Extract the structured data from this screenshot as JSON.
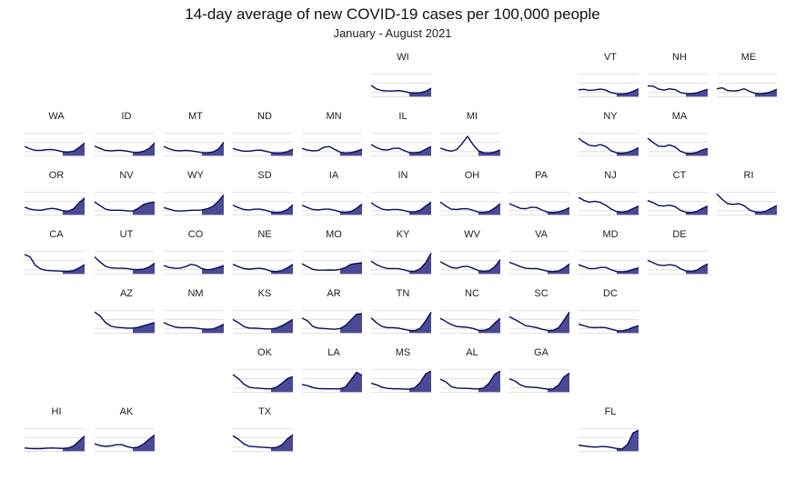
{
  "chart": {
    "title": "14-day average of new COVID-19 cases per 100,000 people",
    "subtitle": "January - August 2021"
  },
  "chart_data": {
    "type": "area",
    "layout": "small-multiples (US state grid)",
    "x_range": [
      "2021-01",
      "2021-08"
    ],
    "colors": {
      "fill": "#4b4a96",
      "line": "#0a0f5c",
      "grid": "#d9d9d9"
    },
    "states": [
      {
        "name": "WI",
        "values": [
          0.5,
          0.32,
          0.24,
          0.22,
          0.22,
          0.24,
          0.2,
          0.13,
          0.12,
          0.13,
          0.2,
          0.36
        ]
      },
      {
        "name": "VT",
        "values": [
          0.28,
          0.3,
          0.25,
          0.27,
          0.32,
          0.26,
          0.13,
          0.08,
          0.07,
          0.1,
          0.2,
          0.33
        ]
      },
      {
        "name": "NH",
        "values": [
          0.48,
          0.46,
          0.32,
          0.26,
          0.33,
          0.29,
          0.14,
          0.09,
          0.08,
          0.12,
          0.22,
          0.3
        ]
      },
      {
        "name": "ME",
        "values": [
          0.33,
          0.38,
          0.24,
          0.22,
          0.24,
          0.33,
          0.2,
          0.1,
          0.08,
          0.11,
          0.18,
          0.3
        ]
      },
      {
        "name": "WA",
        "values": [
          0.4,
          0.28,
          0.2,
          0.2,
          0.24,
          0.25,
          0.2,
          0.13,
          0.12,
          0.16,
          0.35,
          0.58
        ]
      },
      {
        "name": "ID",
        "values": [
          0.42,
          0.3,
          0.2,
          0.18,
          0.2,
          0.2,
          0.16,
          0.11,
          0.1,
          0.16,
          0.3,
          0.58
        ]
      },
      {
        "name": "MT",
        "values": [
          0.4,
          0.28,
          0.2,
          0.18,
          0.2,
          0.18,
          0.14,
          0.09,
          0.08,
          0.12,
          0.26,
          0.62
        ]
      },
      {
        "name": "ND",
        "values": [
          0.3,
          0.22,
          0.16,
          0.16,
          0.2,
          0.22,
          0.16,
          0.09,
          0.07,
          0.08,
          0.14,
          0.26
        ]
      },
      {
        "name": "MN",
        "values": [
          0.3,
          0.22,
          0.18,
          0.2,
          0.36,
          0.4,
          0.25,
          0.11,
          0.07,
          0.09,
          0.16,
          0.26
        ]
      },
      {
        "name": "IL",
        "values": [
          0.5,
          0.34,
          0.24,
          0.22,
          0.3,
          0.32,
          0.2,
          0.09,
          0.08,
          0.12,
          0.26,
          0.4
        ]
      },
      {
        "name": "MI",
        "values": [
          0.32,
          0.22,
          0.16,
          0.24,
          0.55,
          0.92,
          0.5,
          0.18,
          0.08,
          0.07,
          0.12,
          0.22
        ]
      },
      {
        "name": "NY",
        "values": [
          0.82,
          0.62,
          0.46,
          0.42,
          0.5,
          0.4,
          0.18,
          0.08,
          0.06,
          0.1,
          0.2,
          0.34
        ]
      },
      {
        "name": "MA",
        "values": [
          0.82,
          0.6,
          0.42,
          0.4,
          0.48,
          0.38,
          0.16,
          0.06,
          0.05,
          0.1,
          0.22,
          0.3
        ]
      },
      {
        "name": "OR",
        "values": [
          0.32,
          0.22,
          0.18,
          0.16,
          0.22,
          0.26,
          0.22,
          0.14,
          0.12,
          0.24,
          0.55,
          0.78
        ]
      },
      {
        "name": "NV",
        "values": [
          0.58,
          0.4,
          0.22,
          0.16,
          0.16,
          0.16,
          0.13,
          0.12,
          0.26,
          0.46,
          0.54,
          0.58
        ]
      },
      {
        "name": "WY",
        "values": [
          0.3,
          0.22,
          0.14,
          0.12,
          0.14,
          0.16,
          0.16,
          0.18,
          0.24,
          0.36,
          0.62,
          0.95
        ]
      },
      {
        "name": "SD",
        "values": [
          0.42,
          0.3,
          0.2,
          0.18,
          0.22,
          0.22,
          0.16,
          0.08,
          0.05,
          0.08,
          0.2,
          0.44
        ]
      },
      {
        "name": "IA",
        "values": [
          0.42,
          0.3,
          0.2,
          0.18,
          0.22,
          0.22,
          0.16,
          0.08,
          0.06,
          0.1,
          0.26,
          0.48
        ]
      },
      {
        "name": "IN",
        "values": [
          0.55,
          0.36,
          0.22,
          0.18,
          0.2,
          0.2,
          0.15,
          0.08,
          0.08,
          0.16,
          0.38,
          0.58
        ]
      },
      {
        "name": "OH",
        "values": [
          0.58,
          0.38,
          0.22,
          0.2,
          0.24,
          0.24,
          0.16,
          0.07,
          0.06,
          0.1,
          0.28,
          0.5
        ]
      },
      {
        "name": "PA",
        "values": [
          0.5,
          0.38,
          0.26,
          0.24,
          0.32,
          0.3,
          0.17,
          0.07,
          0.05,
          0.08,
          0.16,
          0.3
        ]
      },
      {
        "name": "NJ",
        "values": [
          0.82,
          0.66,
          0.58,
          0.62,
          0.56,
          0.42,
          0.22,
          0.09,
          0.07,
          0.12,
          0.25,
          0.38
        ]
      },
      {
        "name": "CT",
        "values": [
          0.66,
          0.55,
          0.4,
          0.38,
          0.42,
          0.35,
          0.16,
          0.06,
          0.05,
          0.1,
          0.25,
          0.38
        ]
      },
      {
        "name": "RI",
        "values": [
          1.0,
          0.72,
          0.5,
          0.46,
          0.5,
          0.4,
          0.18,
          0.08,
          0.06,
          0.12,
          0.26,
          0.4
        ]
      },
      {
        "name": "CA",
        "values": [
          0.92,
          0.8,
          0.36,
          0.18,
          0.11,
          0.09,
          0.08,
          0.07,
          0.06,
          0.1,
          0.24,
          0.4
        ]
      },
      {
        "name": "UT",
        "values": [
          0.8,
          0.54,
          0.32,
          0.24,
          0.22,
          0.22,
          0.2,
          0.16,
          0.15,
          0.18,
          0.28,
          0.48
        ]
      },
      {
        "name": "CO",
        "values": [
          0.36,
          0.26,
          0.22,
          0.22,
          0.3,
          0.42,
          0.36,
          0.2,
          0.14,
          0.18,
          0.26,
          0.36
        ]
      },
      {
        "name": "NE",
        "values": [
          0.42,
          0.3,
          0.2,
          0.17,
          0.2,
          0.22,
          0.16,
          0.07,
          0.05,
          0.1,
          0.24,
          0.42
        ]
      },
      {
        "name": "MO",
        "values": [
          0.45,
          0.3,
          0.16,
          0.12,
          0.12,
          0.13,
          0.12,
          0.16,
          0.26,
          0.42,
          0.46,
          0.5
        ]
      },
      {
        "name": "KY",
        "values": [
          0.58,
          0.4,
          0.28,
          0.2,
          0.2,
          0.2,
          0.14,
          0.07,
          0.06,
          0.2,
          0.5,
          1.0
        ]
      },
      {
        "name": "WV",
        "values": [
          0.55,
          0.4,
          0.26,
          0.22,
          0.3,
          0.32,
          0.22,
          0.1,
          0.06,
          0.1,
          0.3,
          0.66
        ]
      },
      {
        "name": "VA",
        "values": [
          0.52,
          0.42,
          0.3,
          0.22,
          0.2,
          0.2,
          0.14,
          0.07,
          0.05,
          0.08,
          0.22,
          0.44
        ]
      },
      {
        "name": "MD",
        "values": [
          0.4,
          0.3,
          0.2,
          0.2,
          0.26,
          0.26,
          0.14,
          0.05,
          0.04,
          0.07,
          0.16,
          0.24
        ]
      },
      {
        "name": "DE",
        "values": [
          0.62,
          0.5,
          0.38,
          0.36,
          0.4,
          0.36,
          0.2,
          0.08,
          0.06,
          0.12,
          0.3,
          0.44
        ]
      },
      {
        "name": "AZ",
        "values": [
          1.0,
          0.8,
          0.46,
          0.28,
          0.22,
          0.2,
          0.18,
          0.18,
          0.22,
          0.3,
          0.38,
          0.46
        ]
      },
      {
        "name": "NM",
        "values": [
          0.46,
          0.34,
          0.24,
          0.2,
          0.2,
          0.2,
          0.18,
          0.14,
          0.12,
          0.14,
          0.24,
          0.38
        ]
      },
      {
        "name": "KS",
        "values": [
          0.62,
          0.46,
          0.26,
          0.18,
          0.18,
          0.16,
          0.14,
          0.14,
          0.18,
          0.3,
          0.46,
          0.62
        ]
      },
      {
        "name": "AR",
        "values": [
          0.7,
          0.55,
          0.26,
          0.18,
          0.16,
          0.14,
          0.12,
          0.16,
          0.32,
          0.6,
          0.88,
          0.92
        ]
      },
      {
        "name": "TN",
        "values": [
          0.7,
          0.45,
          0.26,
          0.2,
          0.2,
          0.18,
          0.12,
          0.06,
          0.05,
          0.18,
          0.55,
          1.0
        ]
      },
      {
        "name": "NC",
        "values": [
          0.68,
          0.52,
          0.36,
          0.26,
          0.24,
          0.22,
          0.16,
          0.07,
          0.06,
          0.16,
          0.44,
          0.68
        ]
      },
      {
        "name": "SC",
        "values": [
          0.76,
          0.62,
          0.46,
          0.3,
          0.26,
          0.2,
          0.12,
          0.06,
          0.06,
          0.2,
          0.58,
          1.0
        ]
      },
      {
        "name": "DC",
        "values": [
          0.38,
          0.3,
          0.22,
          0.2,
          0.22,
          0.2,
          0.12,
          0.05,
          0.04,
          0.1,
          0.22,
          0.3
        ]
      },
      {
        "name": "OK",
        "values": [
          0.82,
          0.62,
          0.34,
          0.18,
          0.14,
          0.12,
          0.1,
          0.1,
          0.18,
          0.38,
          0.62,
          0.72
        ]
      },
      {
        "name": "LA",
        "values": [
          0.32,
          0.26,
          0.16,
          0.11,
          0.1,
          0.1,
          0.09,
          0.09,
          0.2,
          0.56,
          0.94,
          0.78
        ]
      },
      {
        "name": "MS",
        "values": [
          0.38,
          0.3,
          0.18,
          0.12,
          0.1,
          0.1,
          0.08,
          0.08,
          0.15,
          0.42,
          0.86,
          1.0
        ]
      },
      {
        "name": "AL",
        "values": [
          0.58,
          0.46,
          0.22,
          0.14,
          0.12,
          0.12,
          0.1,
          0.09,
          0.14,
          0.4,
          0.84,
          1.0
        ]
      },
      {
        "name": "GA",
        "values": [
          0.6,
          0.5,
          0.3,
          0.2,
          0.18,
          0.17,
          0.12,
          0.08,
          0.09,
          0.28,
          0.7,
          0.9
        ]
      },
      {
        "name": "FL",
        "values": [
          0.24,
          0.2,
          0.16,
          0.14,
          0.16,
          0.16,
          0.12,
          0.06,
          0.04,
          0.28,
          0.86,
          1.0
        ]
      },
      {
        "name": "HI",
        "values": [
          0.09,
          0.07,
          0.06,
          0.06,
          0.08,
          0.09,
          0.08,
          0.07,
          0.09,
          0.2,
          0.45,
          0.7
        ]
      },
      {
        "name": "AK",
        "values": [
          0.3,
          0.22,
          0.18,
          0.2,
          0.26,
          0.26,
          0.16,
          0.1,
          0.14,
          0.3,
          0.54,
          0.76
        ]
      },
      {
        "name": "TX",
        "values": [
          0.72,
          0.54,
          0.3,
          0.18,
          0.16,
          0.14,
          0.12,
          0.1,
          0.12,
          0.26,
          0.56,
          0.76
        ]
      }
    ]
  }
}
